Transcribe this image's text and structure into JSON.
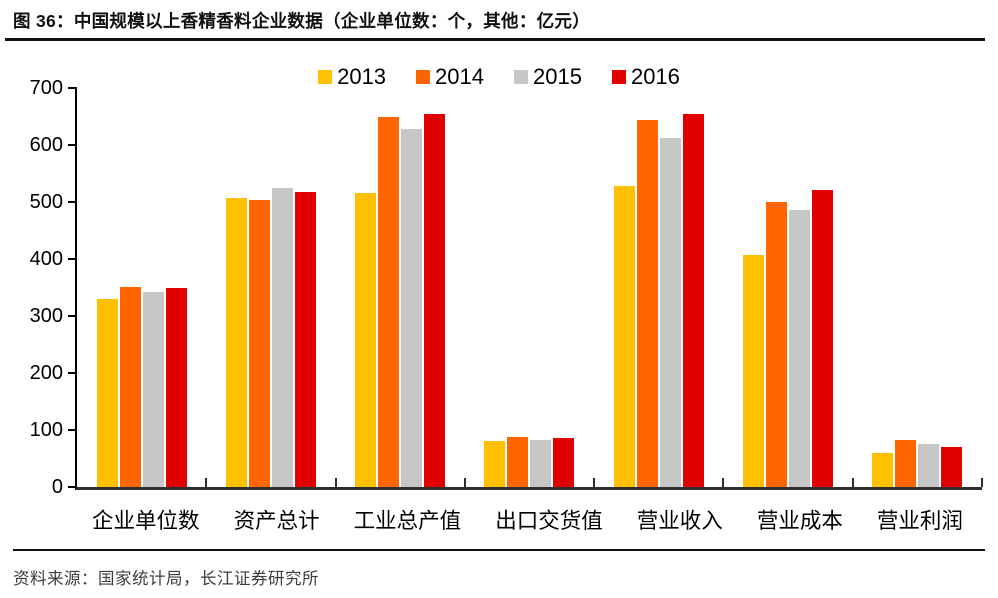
{
  "header": {
    "title": "图  36：中国规模以上香精香料企业数据（企业单位数：个，其他：亿元）"
  },
  "chart_data": {
    "type": "bar",
    "title": "中国规模以上香精香料企业数据",
    "unit_note": "企业单位数：个，其他：亿元",
    "categories": [
      "企业单位数",
      "资产总计",
      "工业总产值",
      "出口交货值",
      "营业收入",
      "营业成本",
      "营业利润"
    ],
    "series": [
      {
        "name": "2013",
        "color": "#FFC000",
        "values": [
          330,
          507,
          516,
          80,
          528,
          407,
          60
        ]
      },
      {
        "name": "2014",
        "color": "#FF6600",
        "values": [
          351,
          503,
          649,
          87,
          644,
          500,
          82
        ]
      },
      {
        "name": "2015",
        "color": "#C6C6C6",
        "values": [
          343,
          524,
          628,
          82,
          612,
          486,
          75
        ]
      },
      {
        "name": "2016",
        "color": "#E00000",
        "values": [
          349,
          518,
          654,
          86,
          654,
          521,
          70
        ]
      }
    ],
    "xlabel": "",
    "ylabel": "",
    "ylim": [
      0,
      700
    ],
    "yticks": [
      0,
      100,
      200,
      300,
      400,
      500,
      600,
      700
    ],
    "grid": false,
    "legend_position": "top-center"
  },
  "footer": {
    "source": "资料来源：国家统计局，长江证券研究所"
  }
}
